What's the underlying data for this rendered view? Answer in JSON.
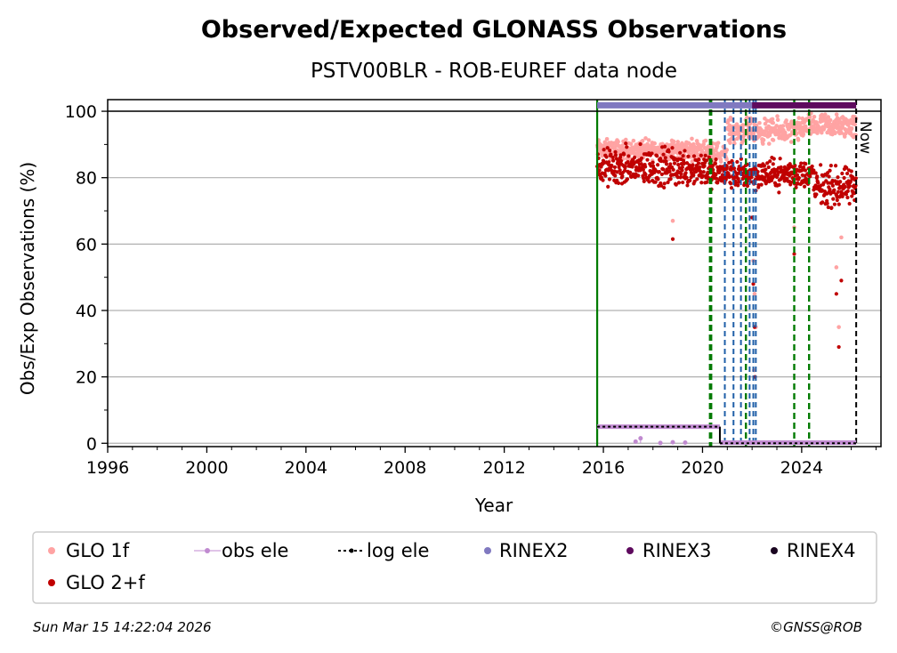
{
  "chart_data": {
    "type": "scatter",
    "title": "Observed/Expected GLONASS Observations",
    "subtitle": "PSTV00BLR - ROB-EUREF data node",
    "xlabel": "Year",
    "ylabel": "Obs/Exp Observations (%)",
    "xlim": [
      1996,
      2027.2
    ],
    "ylim": [
      -1,
      103.5
    ],
    "xticks": [
      "1996",
      "2000",
      "2004",
      "2008",
      "2012",
      "2016",
      "2020",
      "2024"
    ],
    "yticks": [
      "0",
      "20",
      "40",
      "60",
      "80",
      "100"
    ],
    "grid": "horizontal",
    "now_label": "Now",
    "colors": {
      "glo1f": "#ffa3a3",
      "glo2f": "#c00000",
      "obs_ele": "#c08ad0",
      "log_ele": "#000000",
      "rinex2": "#8079c0",
      "rinex3": "#5e0a5e",
      "rinex4": "#1a0520",
      "green_lines": "#007a00",
      "blue_lines": "#1f5fa8"
    },
    "series": [
      {
        "name": "GLO 1f",
        "type": "scatter",
        "segments": [
          {
            "x_range": [
              2015.75,
              2020.3
            ],
            "typical": 88.5,
            "spread": 2
          },
          {
            "x_range": [
              2020.3,
              2021.0
            ],
            "typical": 87,
            "spread": 2.5
          },
          {
            "x_range": [
              2021.0,
              2024.0
            ],
            "typical": 94,
            "spread": 2.5
          },
          {
            "x_range": [
              2024.0,
              2026.2
            ],
            "typical": 95.5,
            "spread": 2.5
          }
        ],
        "outliers": [
          [
            2018.8,
            67
          ],
          [
            2022.05,
            55
          ],
          [
            2022.1,
            45
          ],
          [
            2022.15,
            35
          ],
          [
            2022.08,
            22
          ],
          [
            2025.4,
            53
          ],
          [
            2025.5,
            35
          ],
          [
            2025.6,
            62
          ],
          [
            2023.7,
            65
          ]
        ]
      },
      {
        "name": "GLO 2+f",
        "type": "scatter",
        "segments": [
          {
            "x_range": [
              2015.75,
              2020.3
            ],
            "typical": 83,
            "spread": 4
          },
          {
            "x_range": [
              2020.3,
              2024.5
            ],
            "typical": 81,
            "spread": 3
          },
          {
            "x_range": [
              2024.5,
              2026.2
            ],
            "typical": 77,
            "spread": 4
          }
        ],
        "outliers": [
          [
            2018.8,
            61.5
          ],
          [
            2022.05,
            48
          ],
          [
            2022.1,
            35
          ],
          [
            2022.12,
            20
          ],
          [
            2023.7,
            57
          ],
          [
            2025.4,
            45
          ],
          [
            2025.5,
            29
          ],
          [
            2025.6,
            49
          ],
          [
            2022.0,
            68
          ]
        ]
      },
      {
        "name": "obs ele",
        "type": "line",
        "segments": [
          [
            2015.75,
            5.0,
            2020.7,
            5.0
          ],
          [
            2020.7,
            0.2,
            2026.2,
            0.2
          ]
        ],
        "points": [
          [
            2017.3,
            0.5
          ],
          [
            2017.5,
            1.5
          ],
          [
            2018.3,
            0.1
          ],
          [
            2018.8,
            0.3
          ],
          [
            2019.3,
            0.2
          ]
        ]
      },
      {
        "name": "log ele",
        "type": "line",
        "segments": [
          [
            2015.75,
            5.0,
            2020.7,
            5.0
          ],
          [
            2020.7,
            0.0,
            2026.2,
            0.0
          ]
        ],
        "verticals": [
          2020.7
        ]
      },
      {
        "name": "RINEX2",
        "type": "bar-segment",
        "x_range": [
          2015.75,
          2022.2
        ],
        "y": 101.8
      },
      {
        "name": "RINEX3",
        "type": "bar-segment",
        "x_range": [
          2022.0,
          2026.2
        ],
        "y": 101.8
      },
      {
        "name": "RINEX4",
        "type": "bar-segment",
        "x_range": [],
        "y": 101.8
      }
    ],
    "vertical_lines": {
      "green": [
        2015.75,
        2020.3,
        2020.35,
        2021.75,
        2023.7,
        2024.3
      ],
      "blue": [
        2020.9,
        2021.25,
        2021.55,
        2021.9,
        2022.05,
        2022.15
      ],
      "now": 2026.2
    },
    "legend": {
      "placement": "bottom",
      "entries": [
        "GLO 1f",
        "obs ele",
        "log ele",
        "RINEX2",
        "RINEX3",
        "RINEX4",
        "GLO 2+f"
      ]
    }
  },
  "footer": {
    "timestamp": "Sun Mar 15 14:22:04 2026",
    "credit": "©GNSS@ROB"
  }
}
